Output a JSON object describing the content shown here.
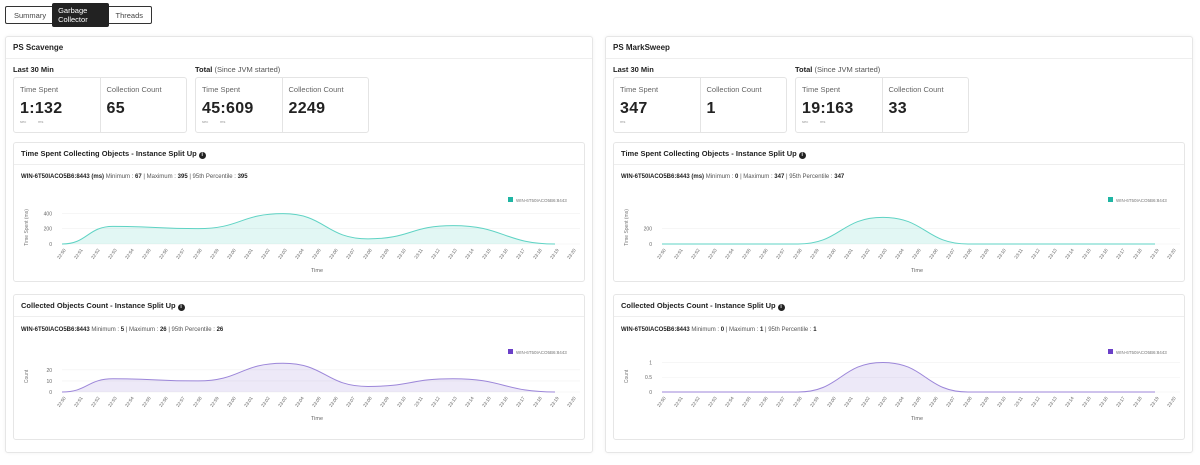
{
  "tabs": [
    {
      "label": "Summary"
    },
    {
      "label": "Garbage Collector",
      "active": true
    },
    {
      "label": "Threads"
    }
  ],
  "units": {
    "sec": "sec",
    "ms": "ms"
  },
  "panels": [
    {
      "title": "PS Scavenge",
      "last30_label": "Last 30 Min",
      "total_label": "Total",
      "total_note": "(Since JVM started)",
      "last30": {
        "time_label": "Time Spent",
        "time_value": "1:132",
        "time_units": [
          "sec",
          "ms"
        ],
        "count_label": "Collection Count",
        "count_value": "65"
      },
      "total": {
        "time_label": "Time Spent",
        "time_value": "45:609",
        "time_units": [
          "sec",
          "ms"
        ],
        "count_label": "Collection Count",
        "count_value": "2249"
      }
    },
    {
      "title": "PS MarkSweep",
      "last30_label": "Last 30 Min",
      "total_label": "Total",
      "total_note": "(Since JVM started)",
      "last30": {
        "time_label": "Time Spent",
        "time_value": "347",
        "time_units": [
          "ms"
        ],
        "count_label": "Collection Count",
        "count_value": "1"
      },
      "total": {
        "time_label": "Time Spent",
        "time_value": "19:163",
        "time_units": [
          "sec",
          "ms"
        ],
        "count_label": "Collection Count",
        "count_value": "33"
      }
    }
  ],
  "chart_data": [
    {
      "type": "area",
      "panel": "PS Scavenge",
      "title": "Time Spent Collecting Objects - Instance Split Up",
      "summary": {
        "instance": "WIN-6T50IACO5B6:8443 (ms)",
        "min": "67",
        "max": "395",
        "p95": "395"
      },
      "xlabel": "Time",
      "ylabel": "Time Spent (ms)",
      "yticks": [
        0,
        200,
        400
      ],
      "ylim": [
        0,
        430
      ],
      "color": "#5fd3c4",
      "legend": "top-right",
      "series": [
        {
          "name": "WIN-6T50IACO5B6:8443",
          "points": [
            [
              "22:50",
              0
            ],
            [
              "22:53",
              230
            ],
            [
              "22:58",
              200
            ],
            [
              "23:03",
              395
            ],
            [
              "23:08",
              67
            ],
            [
              "23:13",
              240
            ],
            [
              "23:19",
              0
            ]
          ]
        }
      ]
    },
    {
      "type": "area",
      "panel": "PS Scavenge",
      "title": "Collected Objects Count - Instance Split Up",
      "summary": {
        "instance": "WIN-6T50IACO5B6:8443",
        "min": "5",
        "max": "26",
        "p95": "26"
      },
      "xlabel": "Time",
      "ylabel": "Count",
      "yticks": [
        0,
        10,
        20
      ],
      "ylim": [
        0,
        28
      ],
      "color": "#9c86d9",
      "legend": "top-right",
      "series": [
        {
          "name": "WIN-6T50IACO5B6:8443",
          "points": [
            [
              "22:50",
              0
            ],
            [
              "22:53",
              12
            ],
            [
              "22:58",
              10
            ],
            [
              "23:03",
              26
            ],
            [
              "23:08",
              5
            ],
            [
              "23:13",
              12
            ],
            [
              "23:19",
              0
            ]
          ]
        }
      ]
    },
    {
      "type": "area",
      "panel": "PS MarkSweep",
      "title": "Time Spent Collecting Objects - Instance Split Up",
      "summary": {
        "instance": "WIN-6T50IACO5B6:8443 (ms)",
        "min": "0",
        "max": "347",
        "p95": "347"
      },
      "xlabel": "Time",
      "ylabel": "Time Spent (ms)",
      "yticks": [
        0,
        200
      ],
      "ylim": [
        0,
        430
      ],
      "color": "#5fd3c4",
      "legend": "top-right",
      "series": [
        {
          "name": "WIN-6T50IACO5B6:8443",
          "points": [
            [
              "22:50",
              0
            ],
            [
              "22:58",
              0
            ],
            [
              "23:03",
              347
            ],
            [
              "23:08",
              0
            ],
            [
              "23:19",
              0
            ]
          ]
        }
      ]
    },
    {
      "type": "area",
      "panel": "PS MarkSweep",
      "title": "Collected Objects Count - Instance Split Up",
      "summary": {
        "instance": "WIN-6T50IACO5B6:8443",
        "min": "0",
        "max": "1",
        "p95": "1"
      },
      "xlabel": "Time",
      "ylabel": "Count",
      "yticks": [
        0,
        0.5,
        1
      ],
      "ylim": [
        0,
        1.05
      ],
      "color": "#9c86d9",
      "legend": "top-right",
      "series": [
        {
          "name": "WIN-6T50IACO5B6:8443",
          "points": [
            [
              "22:50",
              0
            ],
            [
              "22:58",
              0
            ],
            [
              "23:03",
              1
            ],
            [
              "23:08",
              0
            ],
            [
              "23:19",
              0
            ]
          ]
        }
      ]
    }
  ],
  "xticks": [
    "22:50",
    "22:51",
    "22:52",
    "22:53",
    "22:54",
    "22:55",
    "22:56",
    "22:57",
    "22:58",
    "22:59",
    "23:00",
    "23:01",
    "23:02",
    "23:03",
    "23:04",
    "23:05",
    "23:06",
    "23:07",
    "23:08",
    "23:09",
    "23:10",
    "23:11",
    "23:12",
    "23:13",
    "23:14",
    "23:15",
    "23:16",
    "23:17",
    "23:18",
    "23:19",
    "23:20"
  ],
  "labels": {
    "minimum": "Minimum :",
    "maximum": "| Maximum :",
    "p95": "| 95th Percentile :"
  }
}
